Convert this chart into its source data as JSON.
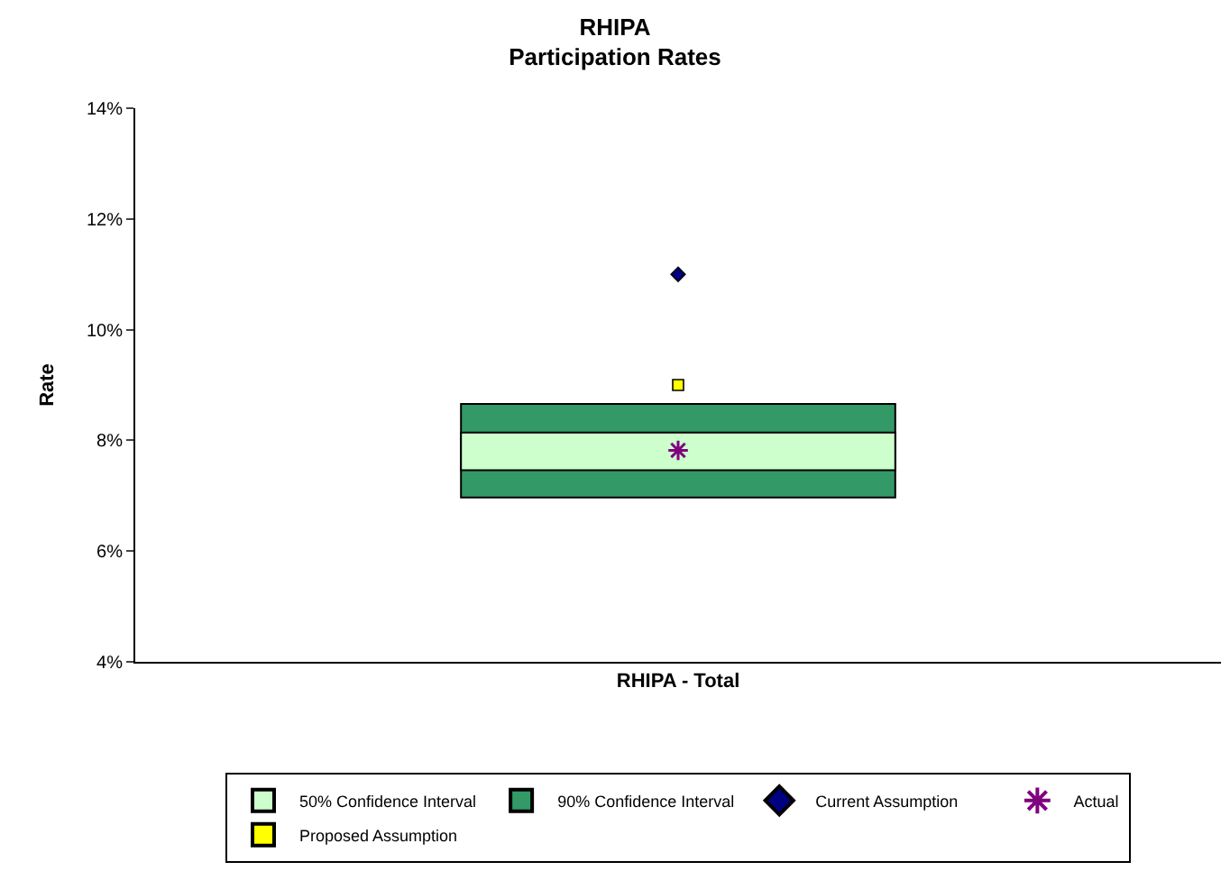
{
  "chart_data": {
    "type": "bar",
    "title": "RHIPA\nParticipation Rates",
    "ylabel": "Rate",
    "categories": [
      "RHIPA - Total"
    ],
    "series": [
      {
        "name": "50% Confidence Interval",
        "color": "#ccffcc",
        "base": [
          7.46
        ],
        "values": [
          0.68
        ]
      },
      {
        "name": "90% Confidence Interval",
        "color": "#339966",
        "base": [
          6.97
        ],
        "values": [
          1.69
        ]
      },
      {
        "name": "Current Assumption",
        "type": "scatter",
        "color": "#000080",
        "marker": "diamond",
        "values": [
          11.0
        ]
      },
      {
        "name": "Actual",
        "type": "scatter",
        "color": "#800080",
        "marker": "cross",
        "values": [
          7.82
        ]
      },
      {
        "name": "Proposed Assumption",
        "type": "scatter",
        "color": "#ffff00",
        "marker": "square",
        "values": [
          9.0
        ]
      }
    ],
    "ylim": [
      4,
      14
    ],
    "yticks": [
      {
        "value": 4,
        "label": "4%"
      },
      {
        "value": 6,
        "label": "6%"
      },
      {
        "value": 8,
        "label": "8%"
      },
      {
        "value": 10,
        "label": "10%"
      },
      {
        "value": 12,
        "label": "12%"
      },
      {
        "value": 14,
        "label": "14%"
      }
    ],
    "grid": false,
    "legend": "bottom"
  }
}
